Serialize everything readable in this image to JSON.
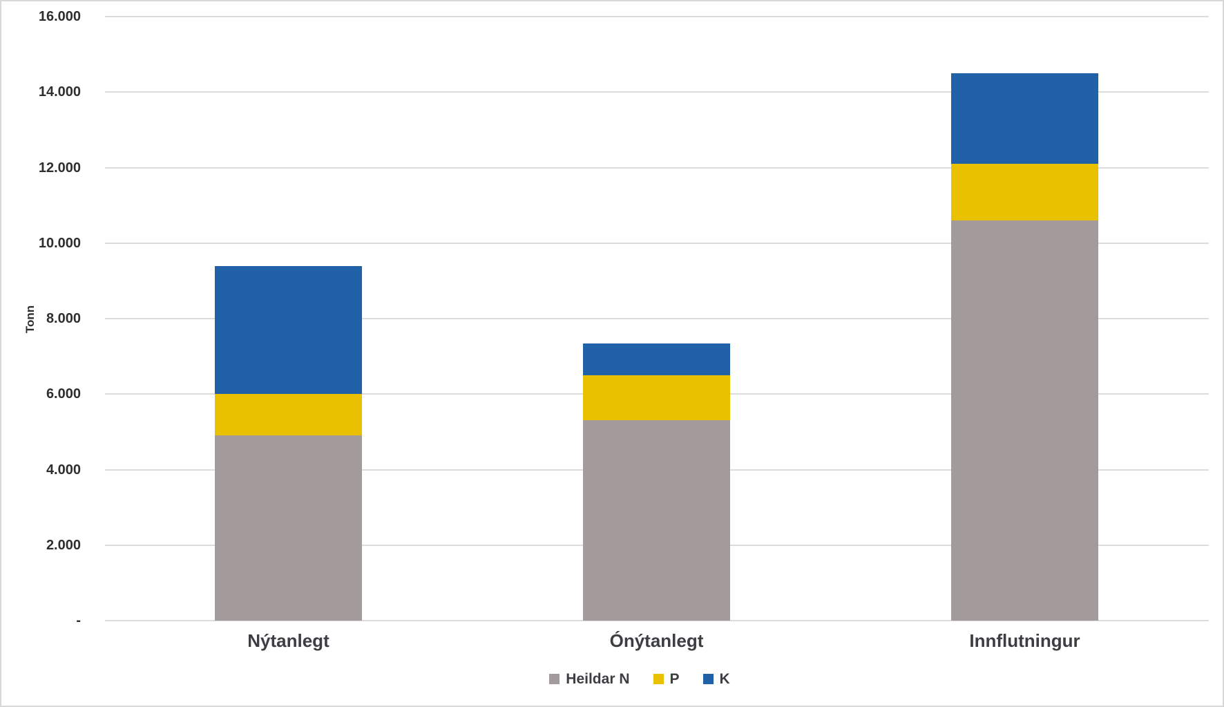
{
  "chart_data": {
    "type": "bar",
    "stacked": true,
    "title": "",
    "xlabel": "",
    "ylabel": "Tonn",
    "categories": [
      "Nýtanlegt",
      "Ónýtanlegt",
      "Innflutningur"
    ],
    "series": [
      {
        "name": "Heildar N",
        "color": "#A39B9B",
        "values": [
          4900,
          5300,
          10600
        ]
      },
      {
        "name": "P",
        "color": "#E9C101",
        "values": [
          1100,
          1200,
          1500
        ]
      },
      {
        "name": "K",
        "color": "#2061A8",
        "values": [
          3400,
          850,
          2400
        ]
      }
    ],
    "totals": [
      9400,
      7350,
      14500
    ],
    "ylim": [
      0,
      16000
    ],
    "ytick_step": 2000,
    "ytick_labels": [
      "-",
      "2.000",
      "4.000",
      "6.000",
      "8.000",
      "10.000",
      "12.000",
      "14.000",
      "16.000"
    ],
    "grid": "horizontal",
    "gridline_color": "#DCDCDC",
    "axis_text_color": "#2E2E30",
    "label_text_color": "#3C3E42",
    "legend_position": "bottom-center"
  }
}
